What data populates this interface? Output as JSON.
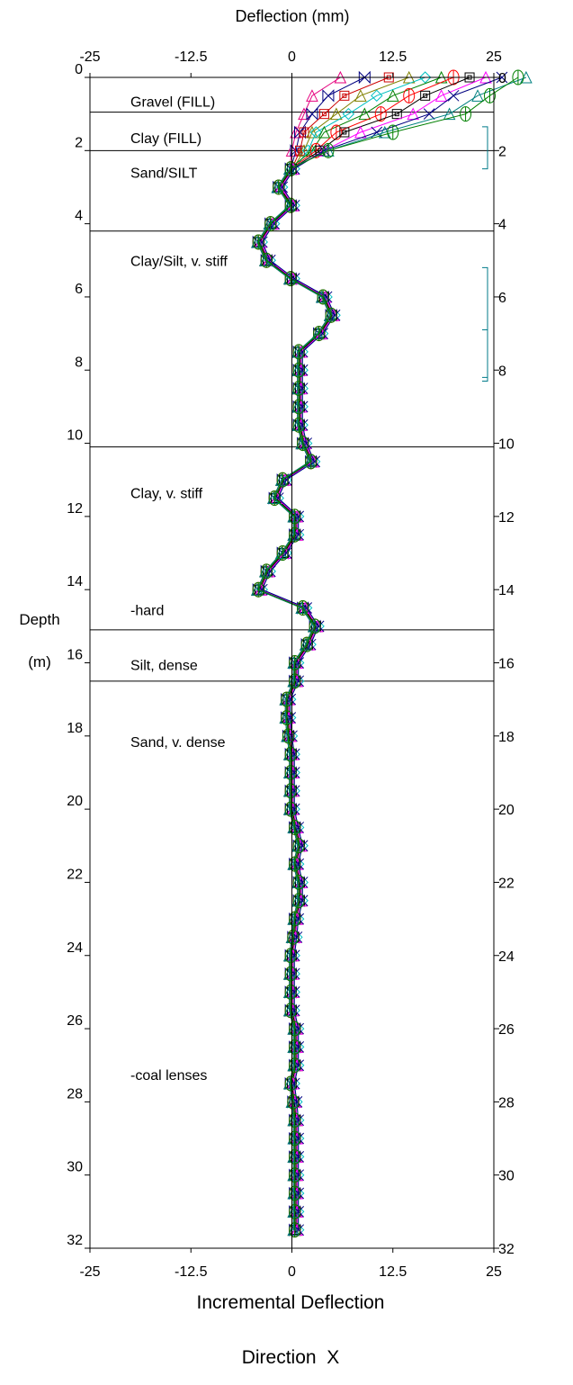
{
  "chart_data": {
    "type": "line",
    "title": "Deflection (mm)",
    "xlabel": "Incremental Deflection",
    "subtitle": "Direction  X",
    "ylabel_line1": "Depth",
    "ylabel_line2": "(m)",
    "xlim": [
      -25,
      25
    ],
    "ylim": [
      0,
      32
    ],
    "x_ticks": [
      "-25",
      "-12.5",
      "0",
      "12.5",
      "25"
    ],
    "y_ticks": [
      "0",
      "2",
      "4",
      "6",
      "8",
      "10",
      "12",
      "14",
      "16",
      "18",
      "20",
      "22",
      "24",
      "26",
      "28",
      "30",
      "32"
    ],
    "layer_boundaries": [
      0.95,
      2.0,
      4.2,
      10.1,
      15.1,
      16.5
    ],
    "layer_labels": [
      {
        "text": "Gravel (FILL)",
        "depth": 0.65
      },
      {
        "text": "Clay (FILL)",
        "depth": 1.65
      },
      {
        "text": "Sand/SILT",
        "depth": 2.6
      },
      {
        "text": "Clay/Silt, v. stiff",
        "depth": 5.0
      },
      {
        "text": "Clay, v. stiff",
        "depth": 11.35
      },
      {
        "text": "-hard",
        "depth": 14.55
      },
      {
        "text": "Silt, dense",
        "depth": 16.05
      },
      {
        "text": "Sand, v. dense",
        "depth": 18.15
      },
      {
        "text": "-coal lenses",
        "depth": 27.25
      }
    ],
    "depths": [
      0.0,
      0.5,
      1.0,
      1.5,
      2.0,
      2.5,
      3.0,
      3.5,
      4.0,
      4.5,
      5.0,
      5.5,
      6.0,
      6.5,
      7.0,
      7.5,
      8.0,
      8.5,
      9.0,
      9.5,
      10.0,
      10.5,
      11.0,
      11.5,
      12.0,
      12.5,
      13.0,
      13.5,
      14.0,
      14.5,
      15.0,
      15.5,
      16.0,
      16.5,
      17.0,
      17.5,
      18.0,
      18.5,
      19.0,
      19.5,
      20.0,
      20.5,
      21.0,
      21.5,
      22.0,
      22.5,
      23.0,
      23.5,
      24.0,
      24.5,
      25.0,
      25.5,
      26.0,
      26.5,
      27.0,
      27.5,
      28.0,
      28.5,
      29.0,
      29.5,
      30.0,
      30.5,
      31.0,
      31.5
    ],
    "base_profile": [
      0,
      0,
      0,
      0,
      0,
      0,
      -1.5,
      0,
      -2.5,
      -4.0,
      -3.0,
      0,
      4.0,
      5.0,
      3.5,
      1.0,
      1.0,
      1.0,
      1.0,
      1.0,
      1.5,
      2.5,
      -1.0,
      -2.0,
      0.5,
      0.5,
      -1.0,
      -3.0,
      -4.0,
      1.5,
      3.0,
      2.0,
      0.5,
      0.5,
      -0.5,
      -0.5,
      -0.3,
      0,
      0,
      0,
      0,
      0.5,
      1.0,
      0.5,
      1.0,
      1.0,
      0.5,
      0.3,
      0,
      0,
      0,
      0,
      0.5,
      0.5,
      0.5,
      0,
      0.3,
      0.5,
      0.5,
      0.5,
      0.5,
      0.5,
      0.5,
      0.5
    ],
    "series": [
      {
        "color": "#e6007e",
        "marker": "triangle",
        "top": [
          6.0,
          2.5,
          1.5,
          0.5,
          0.0
        ]
      },
      {
        "color": "#000080",
        "marker": "bowtie",
        "top": [
          9.0,
          4.5,
          2.5,
          1.0,
          0.5
        ]
      },
      {
        "color": "#cc0000",
        "marker": "boxdot",
        "top": [
          12.0,
          6.5,
          4.0,
          1.5,
          1.0
        ]
      },
      {
        "color": "#808000",
        "marker": "triangle",
        "top": [
          14.5,
          8.5,
          5.5,
          2.5,
          1.5
        ]
      },
      {
        "color": "#00c0c0",
        "marker": "diamond",
        "top": [
          16.5,
          10.5,
          7.0,
          3.0,
          2.0
        ]
      },
      {
        "color": "#008000",
        "marker": "triangle",
        "top": [
          18.5,
          12.5,
          9.0,
          4.0,
          2.5
        ]
      },
      {
        "color": "#ff0000",
        "marker": "circle",
        "top": [
          20.0,
          14.5,
          11.0,
          5.5,
          3.0
        ]
      },
      {
        "color": "#000000",
        "marker": "boxdot",
        "top": [
          22.0,
          16.5,
          13.0,
          6.5,
          3.5
        ]
      },
      {
        "color": "#ff00ff",
        "marker": "triangle",
        "top": [
          24.0,
          18.5,
          15.0,
          8.5,
          4.0
        ]
      },
      {
        "color": "#000080",
        "marker": "xcross",
        "top": [
          26.0,
          20.0,
          17.0,
          10.5,
          4.0
        ]
      },
      {
        "color": "#008080",
        "marker": "triangle",
        "top": [
          29.0,
          23.0,
          19.5,
          11.5,
          4.5
        ]
      },
      {
        "color": "#008000",
        "marker": "circle",
        "top": [
          28.0,
          24.5,
          21.5,
          12.5,
          4.5
        ]
      }
    ],
    "bracket_color": "#007b8a",
    "brackets": [
      [
        1.35,
        2.5
      ],
      [
        5.2,
        8.3
      ],
      [
        6.9,
        8.2
      ]
    ]
  }
}
